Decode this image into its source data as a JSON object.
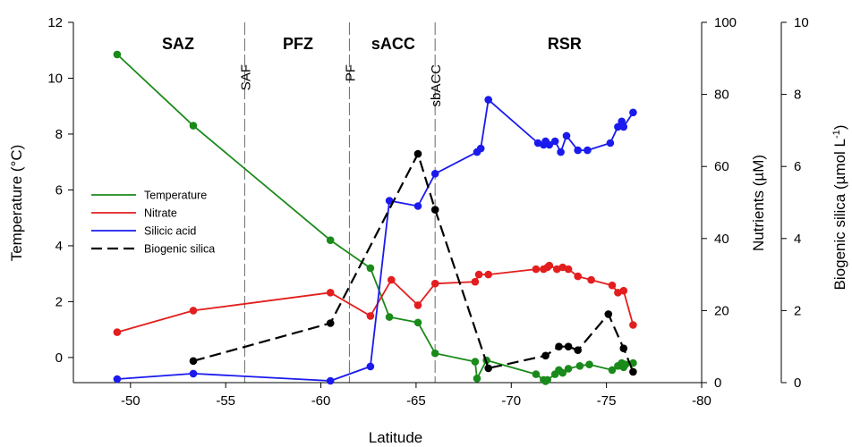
{
  "chart_data": {
    "type": "line",
    "xlabel": "Latitude",
    "ylabel_left": "Temperature (°C)",
    "ylabel_right1": "Nutrients (µM)",
    "ylabel_right2_main": "Biogenic silica (µmol L",
    "ylabel_right2_sup": "-1",
    "ylabel_right2_end": ")",
    "xlim": [
      -47,
      -80
    ],
    "ylim_temperature": [
      -0.9,
      12
    ],
    "ylim_nutrients": [
      0,
      100
    ],
    "ylim_bsi": [
      0,
      10
    ],
    "x_ticks": [
      "-50",
      "-55",
      "-60",
      "-65",
      "-70",
      "-75",
      "-80"
    ],
    "y_ticks_temperature": [
      "0",
      "2",
      "4",
      "6",
      "8",
      "10",
      "12"
    ],
    "y_ticks_nutrients": [
      "0",
      "20",
      "40",
      "60",
      "80",
      "100"
    ],
    "y_ticks_bsi": [
      "0",
      "2",
      "4",
      "6",
      "8",
      "10"
    ],
    "zones": [
      {
        "label": "SAZ",
        "x": -52.5
      },
      {
        "label": "PFZ",
        "x": -58.8
      },
      {
        "label": "sACC",
        "x": -63.8
      },
      {
        "label": "RSR",
        "x": -72.8
      }
    ],
    "fronts": [
      {
        "label": "SAF",
        "x": -56
      },
      {
        "label": "PF",
        "x": -61.5
      },
      {
        "label": "sbACC",
        "x": -66
      }
    ],
    "legend": [
      "Temperature",
      "Nitrate",
      "Silicic acid",
      "Biogenic silica"
    ],
    "series": [
      {
        "name": "Temperature",
        "color": "#1a8a1a",
        "dash": false,
        "axis": "temperature",
        "x": [
          -49.3,
          -53.3,
          -60.5,
          -62.6,
          -63.6,
          -65.1,
          -66.0,
          -68.1,
          -68.2,
          -68.7,
          -71.3,
          -71.7,
          -71.8,
          -71.9,
          -72.3,
          -72.5,
          -72.7,
          -73.0,
          -73.6,
          -74.1,
          -75.3,
          -75.6,
          -75.8,
          -75.9,
          -76.0,
          -76.4
        ],
        "y": [
          10.85,
          8.3,
          4.2,
          3.2,
          1.45,
          1.25,
          0.15,
          -0.15,
          -0.75,
          -0.1,
          -0.6,
          -0.8,
          -0.85,
          -0.8,
          -0.6,
          -0.45,
          -0.55,
          -0.4,
          -0.3,
          -0.25,
          -0.45,
          -0.3,
          -0.2,
          -0.35,
          -0.25,
          -0.2
        ]
      },
      {
        "name": "Nitrate",
        "color": "#e31e1e",
        "dash": false,
        "axis": "nutrients",
        "x": [
          -49.3,
          -53.3,
          -60.5,
          -62.6,
          -63.7,
          -65.1,
          -66.0,
          -68.1,
          -68.3,
          -68.8,
          -71.3,
          -71.7,
          -71.9,
          -72.0,
          -72.4,
          -72.7,
          -73.0,
          -73.5,
          -74.2,
          -75.3,
          -75.6,
          -75.9,
          -76.4
        ],
        "y": [
          14,
          20,
          25,
          18.5,
          28.5,
          21.5,
          27.5,
          28,
          30,
          30,
          31.5,
          31.5,
          32,
          32.5,
          31.5,
          32,
          31.5,
          29.5,
          28.5,
          27,
          25,
          25.5,
          16
        ]
      },
      {
        "name": "Silicic acid",
        "color": "#1a1aee",
        "dash": false,
        "axis": "nutrients",
        "x": [
          -49.3,
          -53.3,
          -60.5,
          -62.6,
          -63.6,
          -65.1,
          -66.0,
          -68.2,
          -68.4,
          -68.8,
          -71.4,
          -71.7,
          -71.8,
          -72.0,
          -72.3,
          -72.6,
          -72.9,
          -73.5,
          -74.0,
          -75.2,
          -75.6,
          -75.8,
          -75.9,
          -76.4
        ],
        "y": [
          1,
          2.5,
          0.5,
          4.5,
          50.5,
          49,
          58,
          64,
          65,
          78.5,
          66.5,
          66,
          67,
          66,
          67,
          64,
          68.5,
          64.5,
          64.5,
          66.5,
          71,
          72.5,
          71,
          75
        ]
      },
      {
        "name": "Biogenic silica",
        "color": "#000000",
        "dash": true,
        "axis": "bsi",
        "x": [
          -53.3,
          -60.5,
          -65.1,
          -66.0,
          -68.8,
          -71.8,
          -72.5,
          -73.0,
          -73.5,
          -75.1,
          -75.9,
          -76.4
        ],
        "y": [
          0.6,
          1.65,
          6.35,
          4.8,
          0.4,
          0.75,
          1.0,
          1.0,
          0.9,
          1.9,
          0.95,
          0.3
        ]
      }
    ]
  }
}
